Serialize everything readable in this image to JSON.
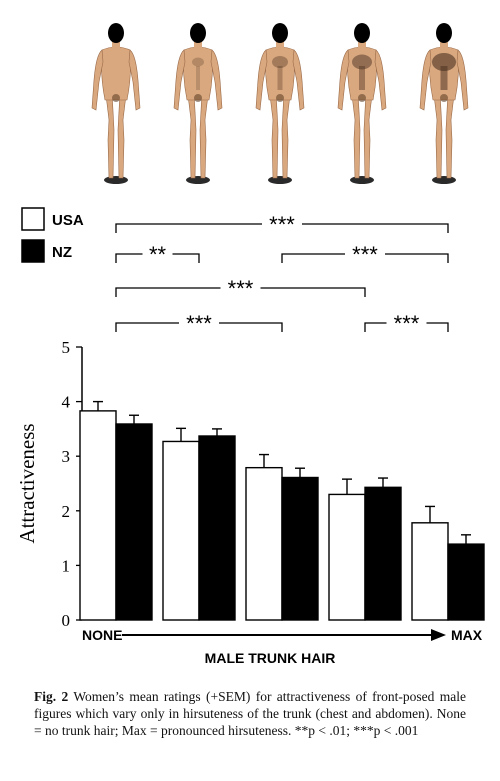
{
  "chart_data": {
    "type": "bar",
    "categories": [
      "1",
      "2",
      "3",
      "4",
      "5"
    ],
    "series": [
      {
        "name": "USA",
        "values": [
          3.83,
          3.27,
          2.79,
          2.3,
          1.78
        ],
        "sem": [
          0.17,
          0.24,
          0.24,
          0.28,
          0.3
        ],
        "color": "#ffffff"
      },
      {
        "name": "NZ",
        "values": [
          3.59,
          3.37,
          2.61,
          2.43,
          1.39
        ],
        "sem": [
          0.16,
          0.13,
          0.17,
          0.17,
          0.17
        ],
        "color": "#000000"
      }
    ],
    "ylabel": "Attractiveness",
    "xlabel": "MALE TRUNK HAIR",
    "x_axis_start_label": "NONE",
    "x_axis_end_label": "MAX",
    "ylim": [
      0,
      5
    ],
    "yticks": [
      0,
      1,
      2,
      3,
      4,
      5
    ],
    "grid": false,
    "legend_position": "top-left",
    "significance": [
      {
        "from": 1,
        "to": 5,
        "label": "***"
      },
      {
        "from": 1,
        "to": 2,
        "label": "**"
      },
      {
        "from": 3,
        "to": 5,
        "label": "***"
      },
      {
        "from": 1,
        "to": 4,
        "label": "***"
      },
      {
        "from": 1,
        "to": 3,
        "label": "***"
      },
      {
        "from": 4,
        "to": 5,
        "label": "***"
      }
    ]
  },
  "figure_images": [
    {
      "hirsuteness": 0
    },
    {
      "hirsuteness": 0.25
    },
    {
      "hirsuteness": 0.5
    },
    {
      "hirsuteness": 0.75
    },
    {
      "hirsuteness": 1
    }
  ],
  "caption": {
    "label": "Fig. 2",
    "text": "Women’s mean ratings (+SEM) for attractiveness of front-posed male figures which vary only in hirsuteness of the trunk (chest and abdomen). None = no trunk hair; Max = pronounced hirsuteness. **p < .01; ***p < .001"
  }
}
